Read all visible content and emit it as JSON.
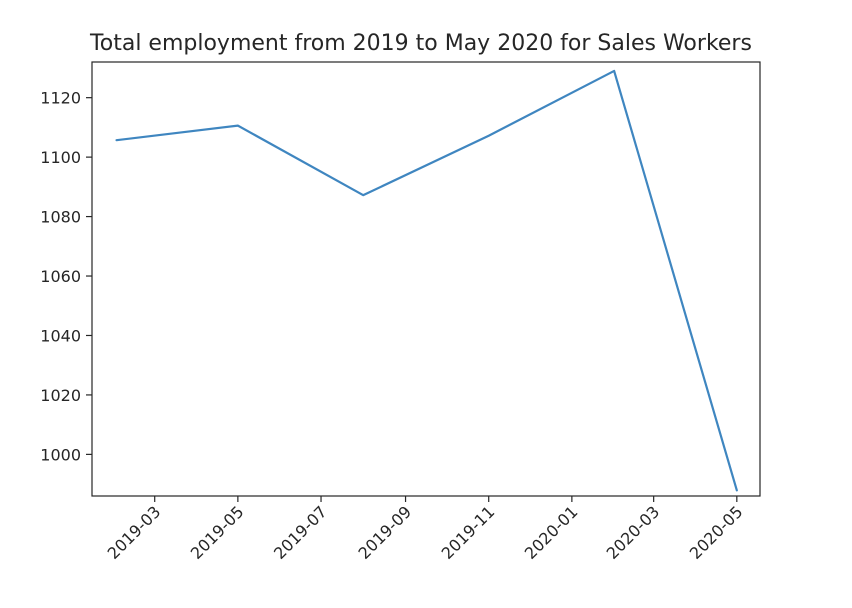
{
  "chart_data": {
    "type": "line",
    "title": "Total employment from 2019 to May 2020 for Sales Workers",
    "xlabel": "",
    "ylabel": "",
    "x_scale": "time",
    "y_scale": "linear",
    "grid": false,
    "legend": "none",
    "xlim": [
      "2019-01-14",
      "2020-05-18"
    ],
    "ylim": [
      986,
      1132
    ],
    "x_ticks": [
      "2019-03",
      "2019-05",
      "2019-07",
      "2019-09",
      "2019-11",
      "2020-01",
      "2020-03",
      "2020-05"
    ],
    "y_ticks": [
      1000,
      1020,
      1040,
      1060,
      1080,
      1100,
      1120
    ],
    "series": [
      {
        "color": "#3f86c0",
        "x": [
          "2019-02-01",
          "2019-05-01",
          "2019-08-01",
          "2019-11-01",
          "2020-02-01",
          "2020-05-01"
        ],
        "y": [
          1105.7,
          1110.6,
          1087.2,
          1107.2,
          1129.0,
          987.9
        ]
      }
    ]
  }
}
